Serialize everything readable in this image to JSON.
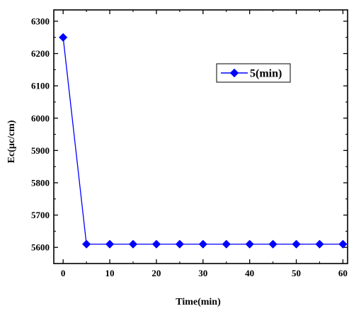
{
  "chart_data": {
    "type": "line",
    "title": "",
    "xlabel": "Time(min)",
    "ylabel": "Ec(μc/cm)",
    "xlim": [
      -2,
      61
    ],
    "ylim": [
      5550,
      6335
    ],
    "x_ticks": [
      0,
      10,
      20,
      30,
      40,
      50,
      60
    ],
    "y_ticks": [
      5600,
      5700,
      5800,
      5900,
      6000,
      6100,
      6200,
      6300
    ],
    "x_minor_step": 5,
    "y_minor_step": 50,
    "grid": false,
    "legend_position": "top-right",
    "series": [
      {
        "name": "5(min)",
        "color": "#0000ff",
        "marker": "diamond",
        "x": [
          0,
          5,
          10,
          15,
          20,
          25,
          30,
          35,
          40,
          45,
          50,
          55,
          60
        ],
        "y": [
          6250,
          5610,
          5610,
          5610,
          5610,
          5610,
          5610,
          5610,
          5610,
          5610,
          5610,
          5610,
          5610
        ]
      }
    ]
  }
}
